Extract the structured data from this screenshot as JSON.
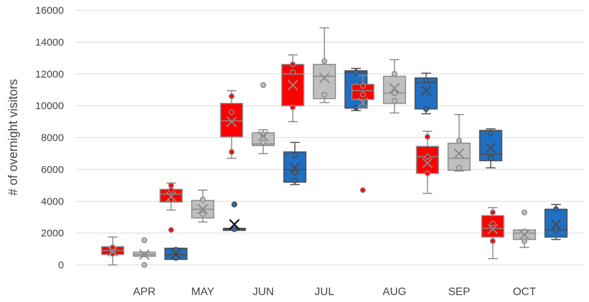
{
  "chart_data": {
    "type": "box",
    "title": "",
    "xlabel": "",
    "ylabel": "# of overnight visitors",
    "ylim": [
      0,
      16000
    ],
    "yticks": [
      0,
      2000,
      4000,
      6000,
      8000,
      10000,
      12000,
      14000,
      16000
    ],
    "grid": true,
    "legend": "none",
    "categories": [
      "APR",
      "MAY",
      "JUN",
      "JUL",
      "AUG",
      "SEP",
      "OCT"
    ],
    "group_colors": [
      "#ff0000",
      "#bfbfbf",
      "#1f6fc4"
    ],
    "groups": [
      {
        "index": 1,
        "label": "",
        "boxes": [
          {
            "min": 0,
            "q1": 650,
            "median": 900,
            "q3": 1150,
            "max": 1750,
            "mean": 850,
            "points": [
              700,
              900,
              1100
            ],
            "outliers": []
          },
          {
            "min": 550,
            "q1": 550,
            "median": 650,
            "q3": 800,
            "max": 800,
            "mean": 650,
            "points": [
              650
            ],
            "outliers": [
              0,
              1550
            ]
          },
          {
            "min": 350,
            "q1": 350,
            "median": 650,
            "q3": 1050,
            "max": 1050,
            "mean": 700,
            "points": [
              450,
              950
            ],
            "outliers": []
          }
        ]
      },
      {
        "index": 2,
        "label": "",
        "boxes": [
          {
            "min": 3450,
            "q1": 3950,
            "median": 4450,
            "q3": 4750,
            "max": 5150,
            "mean": 4300,
            "points": [
              4100,
              4700,
              5000
            ],
            "outliers": [
              2200
            ]
          },
          {
            "min": 2700,
            "q1": 2950,
            "median": 3500,
            "q3": 4050,
            "max": 4700,
            "mean": 3500,
            "points": [
              3200,
              4100
            ],
            "outliers": []
          },
          {
            "min": 2200,
            "q1": 2200,
            "median": 2250,
            "q3": 2300,
            "max": 2300,
            "mean": 2550,
            "points": [
              2250
            ],
            "outliers": [
              3800
            ]
          }
        ]
      },
      {
        "index": 3,
        "label": "",
        "boxes": [
          {
            "min": 6700,
            "q1": 8050,
            "median": 9050,
            "q3": 10150,
            "max": 10950,
            "mean": 9000,
            "points": [
              7100,
              9600,
              10600
            ],
            "outliers": []
          },
          {
            "min": 7000,
            "q1": 7500,
            "median": 7600,
            "q3": 8300,
            "max": 8500,
            "mean": 8100,
            "points": [
              7700,
              8200
            ],
            "outliers": [
              11300
            ]
          },
          {
            "min": 5050,
            "q1": 5200,
            "median": 6000,
            "q3": 7100,
            "max": 7700,
            "mean": 6100,
            "points": [
              5300,
              5800,
              6900
            ],
            "outliers": []
          }
        ]
      },
      {
        "index": 4,
        "label": "",
        "boxes": [
          {
            "min": 9000,
            "q1": 10000,
            "median": 12000,
            "q3": 12600,
            "max": 13200,
            "mean": 11300,
            "points": [
              9900,
              12100,
              12600
            ],
            "outliers": []
          },
          {
            "min": 10200,
            "q1": 10450,
            "median": 11850,
            "q3": 12600,
            "max": 14900,
            "mean": 11750,
            "points": [
              10700,
              12800
            ],
            "outliers": []
          },
          {
            "min": 9700,
            "q1": 9850,
            "median": 12100,
            "q3": 12200,
            "max": 12350,
            "mean": 11200,
            "points": [
              9900,
              12100
            ],
            "outliers": []
          }
        ]
      },
      {
        "index": 5,
        "label": "",
        "boxes": [
          {
            "min": 9850,
            "q1": 10400,
            "median": 10950,
            "q3": 11350,
            "max": 11900,
            "mean": 10200,
            "points": [
              11250,
              10700
            ],
            "outliers": [
              4700
            ]
          },
          {
            "min": 9550,
            "q1": 10150,
            "median": 10800,
            "q3": 11850,
            "max": 12900,
            "mean": 11100,
            "points": [
              10300,
              10800,
              12000
            ],
            "outliers": []
          },
          {
            "min": 9500,
            "q1": 9800,
            "median": 11450,
            "q3": 11750,
            "max": 12050,
            "mean": 10950,
            "points": [
              9800,
              11600
            ],
            "outliers": []
          }
        ]
      },
      {
        "index": 6,
        "label": "",
        "boxes": [
          {
            "min": 4500,
            "q1": 5750,
            "median": 6800,
            "q3": 7450,
            "max": 8400,
            "mean": 6400,
            "points": [
              5750,
              6800,
              8050
            ],
            "outliers": []
          },
          {
            "min": 5900,
            "q1": 5950,
            "median": 6700,
            "q3": 7650,
            "max": 9450,
            "mean": 7000,
            "points": [
              6100,
              7800
            ],
            "outliers": []
          },
          {
            "min": 6100,
            "q1": 6550,
            "median": 6950,
            "q3": 8450,
            "max": 8550,
            "mean": 7350,
            "points": [
              6700,
              8300
            ],
            "outliers": []
          }
        ]
      },
      {
        "index": 7,
        "label": "",
        "boxes": [
          {
            "min": 400,
            "q1": 1750,
            "median": 2300,
            "q3": 3100,
            "max": 3600,
            "mean": 2250,
            "points": [
              1500,
              2600,
              3300
            ],
            "outliers": []
          },
          {
            "min": 1100,
            "q1": 1600,
            "median": 2000,
            "q3": 2200,
            "max": 2200,
            "mean": 1900,
            "points": [
              1500,
              2100
            ],
            "outliers": [
              3300
            ]
          },
          {
            "min": 1600,
            "q1": 1750,
            "median": 2200,
            "q3": 3500,
            "max": 3800,
            "mean": 2550,
            "points": [
              2200,
              3500
            ],
            "outliers": []
          }
        ]
      }
    ]
  }
}
